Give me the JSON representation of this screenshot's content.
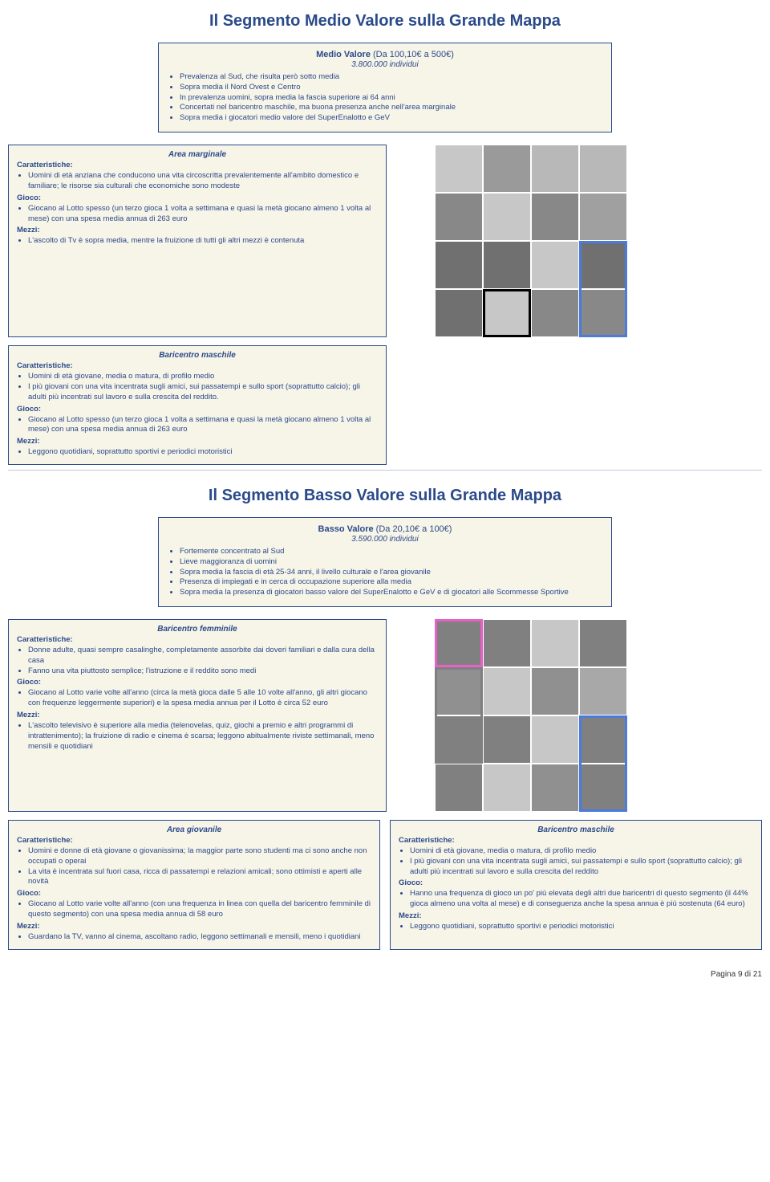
{
  "section1": {
    "title": "Il Segmento Medio Valore sulla Grande Mappa",
    "header": {
      "title_bold": "Medio Valore",
      "title_rest": " (Da 100,10€ a 500€)",
      "subtitle": "3.800.000 individui",
      "items": [
        "Prevalenza al Sud, che risulta però sotto media",
        "Sopra media il Nord Ovest e Centro",
        "In prevalenza uomini, sopra media la fascia superiore ai 64 anni",
        "Concertati nel baricentro maschile, ma buona presenza anche nell'area marginale",
        "Sopra media i giocatori medio valore del SuperEnalotto e GeV"
      ]
    },
    "card1": {
      "title": "Area marginale",
      "lbl_char": "Caratteristiche:",
      "char": [
        "Uomini di età anziana che conducono una vita circoscritta prevalentemente all'ambito domestico e familiare; le risorse sia culturali che economiche sono modeste"
      ],
      "lbl_gioco": "Gioco:",
      "gioco": [
        "Giocano al Lotto spesso (un terzo gioca 1 volta a settimana e quasi la metà giocano almeno 1 volta al mese) con una spesa media annua di 263 euro"
      ],
      "lbl_mezzi": "Mezzi:",
      "mezzi": [
        "L'ascolto di Tv è sopra media, mentre la fruizione di tutti gli altri mezzi è contenuta"
      ]
    },
    "card2": {
      "title": "Baricentro maschile",
      "lbl_char": "Caratteristiche:",
      "char": [
        "Uomini di età giovane, media o matura, di profilo medio",
        "I più giovani con una vita incentrata sugli amici, sui passatempi e sullo sport (soprattutto calcio); gli adulti più incentrati sul lavoro e sulla crescita del reddito."
      ],
      "lbl_gioco": "Gioco:",
      "gioco": [
        "Giocano al Lotto spesso (un terzo gioca 1 volta a settimana e quasi la metà giocano almeno 1 volta al mese) con una spesa media annua di 263 euro"
      ],
      "lbl_mezzi": "Mezzi:",
      "mezzi": [
        "Leggono quotidiani, soprattutto sportivi e periodici motoristici"
      ]
    },
    "grid": {
      "size": 240,
      "cols": 4,
      "rows": 4,
      "bg": "#c7c7c7",
      "cells": [
        {
          "r": 0,
          "c": 1,
          "color": "#9a9a9a"
        },
        {
          "r": 0,
          "c": 2,
          "color": "#b8b8b8",
          "w": 2
        },
        {
          "r": 1,
          "c": 0,
          "color": "#888"
        },
        {
          "r": 1,
          "c": 2,
          "color": "#888"
        },
        {
          "r": 1,
          "c": 3,
          "color": "#a0a0a0"
        },
        {
          "r": 2,
          "c": 0,
          "color": "#707070"
        },
        {
          "r": 2,
          "c": 1,
          "color": "#707070"
        },
        {
          "r": 2,
          "c": 3,
          "color": "#707070"
        },
        {
          "r": 3,
          "c": 0,
          "color": "#707070"
        },
        {
          "r": 3,
          "c": 2,
          "color": "#888"
        },
        {
          "r": 3,
          "c": 3,
          "color": "#888"
        }
      ],
      "highlights": [
        {
          "r": 2,
          "c": 3,
          "w": 1,
          "h": 2,
          "stroke": "#4a7bdd",
          "sw": 3
        },
        {
          "r": 3,
          "c": 1,
          "w": 1,
          "h": 1,
          "stroke": "#000000",
          "sw": 3
        }
      ]
    }
  },
  "section2": {
    "title": "Il Segmento Basso Valore sulla Grande Mappa",
    "header": {
      "title_bold": "Basso Valore",
      "title_rest": " (Da 20,10€ a 100€)",
      "subtitle": "3.590.000 individui",
      "items": [
        "Fortemente concentrato al Sud",
        "Lieve maggioranza di uomini",
        "Sopra media la fascia di età 25-34 anni, il livello culturale e l'area giovanile",
        "Presenza di impiegati e in cerca di occupazione superiore alla media",
        "Sopra media la presenza di giocatori basso valore del SuperEnalotto e GeV e di giocatori alle Scommesse Sportive"
      ]
    },
    "card1": {
      "title": "Baricentro femminile",
      "lbl_char": "Caratteristiche:",
      "char": [
        "Donne adulte, quasi sempre casalinghe, completamente assorbite dai doveri familiari e dalla cura della casa",
        "Fanno una vita piuttosto semplice; l'istruzione e il reddito sono medi"
      ],
      "lbl_gioco": "Gioco:",
      "gioco": [
        "Giocano al Lotto varie volte all'anno (circa la metà gioca dalle 5 alle 10 volte all'anno, gli altri giocano con frequenze leggermente superiori) e la spesa media annua per il Lotto è circa 52 euro"
      ],
      "lbl_mezzi": "Mezzi:",
      "mezzi": [
        "L'ascolto televisivo è superiore alla media (telenovelas, quiz, giochi a premio e altri programmi di intrattenimento); la fruizione di radio e cinema è scarsa; leggono abitualmente riviste settimanali, meno mensili e quotidiani"
      ]
    },
    "card2": {
      "title": "Area giovanile",
      "lbl_char": "Caratteristiche:",
      "char": [
        "Uomini e donne di età giovane o giovanissima; la maggior parte sono studenti ma ci sono anche non occupati o operai",
        "La vita è incentrata sul fuori casa, ricca di passatempi e relazioni amicali; sono ottimisti e aperti alle novità"
      ],
      "lbl_gioco": "Gioco:",
      "gioco": [
        "Giocano al Lotto varie volte all'anno (con una frequenza in linea con quella del baricentro femminile di questo segmento) con una spesa media annua di 58 euro"
      ],
      "lbl_mezzi": "Mezzi:",
      "mezzi": [
        "Guardano la TV, vanno al cinema, ascoltano radio, leggono settimanali e mensili, meno i quotidiani"
      ]
    },
    "card3": {
      "title": "Baricentro maschile",
      "lbl_char": "Caratteristiche:",
      "char": [
        "Uomini di età giovane, media o matura, di profilo medio",
        "I più giovani con una vita incentrata sugli amici, sui passatempi e sullo sport (soprattutto calcio); gli adulti più incentrati sul lavoro e sulla crescita del reddito"
      ],
      "lbl_gioco": "Gioco:",
      "gioco": [
        "Hanno una frequenza di gioco un po' più elevata degli altri due baricentri di questo segmento (il 44% gioca almeno una volta al mese) e di conseguenza anche la spesa annua è più sostenuta (64 euro)"
      ],
      "lbl_mezzi": "Mezzi:",
      "mezzi": [
        "Leggono quotidiani, soprattutto sportivi e periodici motoristici"
      ]
    },
    "grid": {
      "size": 240,
      "cols": 4,
      "rows": 4,
      "bg": "#c7c7c7",
      "cells": [
        {
          "r": 0,
          "c": 0,
          "color": "#808080"
        },
        {
          "r": 0,
          "c": 1,
          "color": "#808080"
        },
        {
          "r": 0,
          "c": 3,
          "color": "#808080"
        },
        {
          "r": 1,
          "c": 0,
          "color": "#909090"
        },
        {
          "r": 1,
          "c": 2,
          "color": "#909090"
        },
        {
          "r": 1,
          "c": 3,
          "color": "#a8a8a8"
        },
        {
          "r": 2,
          "c": 0,
          "color": "#808080"
        },
        {
          "r": 2,
          "c": 1,
          "color": "#808080"
        },
        {
          "r": 2,
          "c": 3,
          "color": "#808080"
        },
        {
          "r": 3,
          "c": 0,
          "color": "#808080"
        },
        {
          "r": 3,
          "c": 2,
          "color": "#909090"
        },
        {
          "r": 3,
          "c": 3,
          "color": "#808080"
        }
      ],
      "highlights": [
        {
          "r": 0,
          "c": 0,
          "w": 1,
          "h": 1,
          "stroke": "#e85fc7",
          "sw": 3
        },
        {
          "r": 1,
          "c": 0,
          "w": 1,
          "h": 2,
          "stroke": "#808080",
          "sw": 3
        },
        {
          "r": 2,
          "c": 3,
          "w": 1,
          "h": 2,
          "stroke": "#4a7bdd",
          "sw": 3
        }
      ]
    }
  },
  "footer": "Pagina 9 di 21"
}
